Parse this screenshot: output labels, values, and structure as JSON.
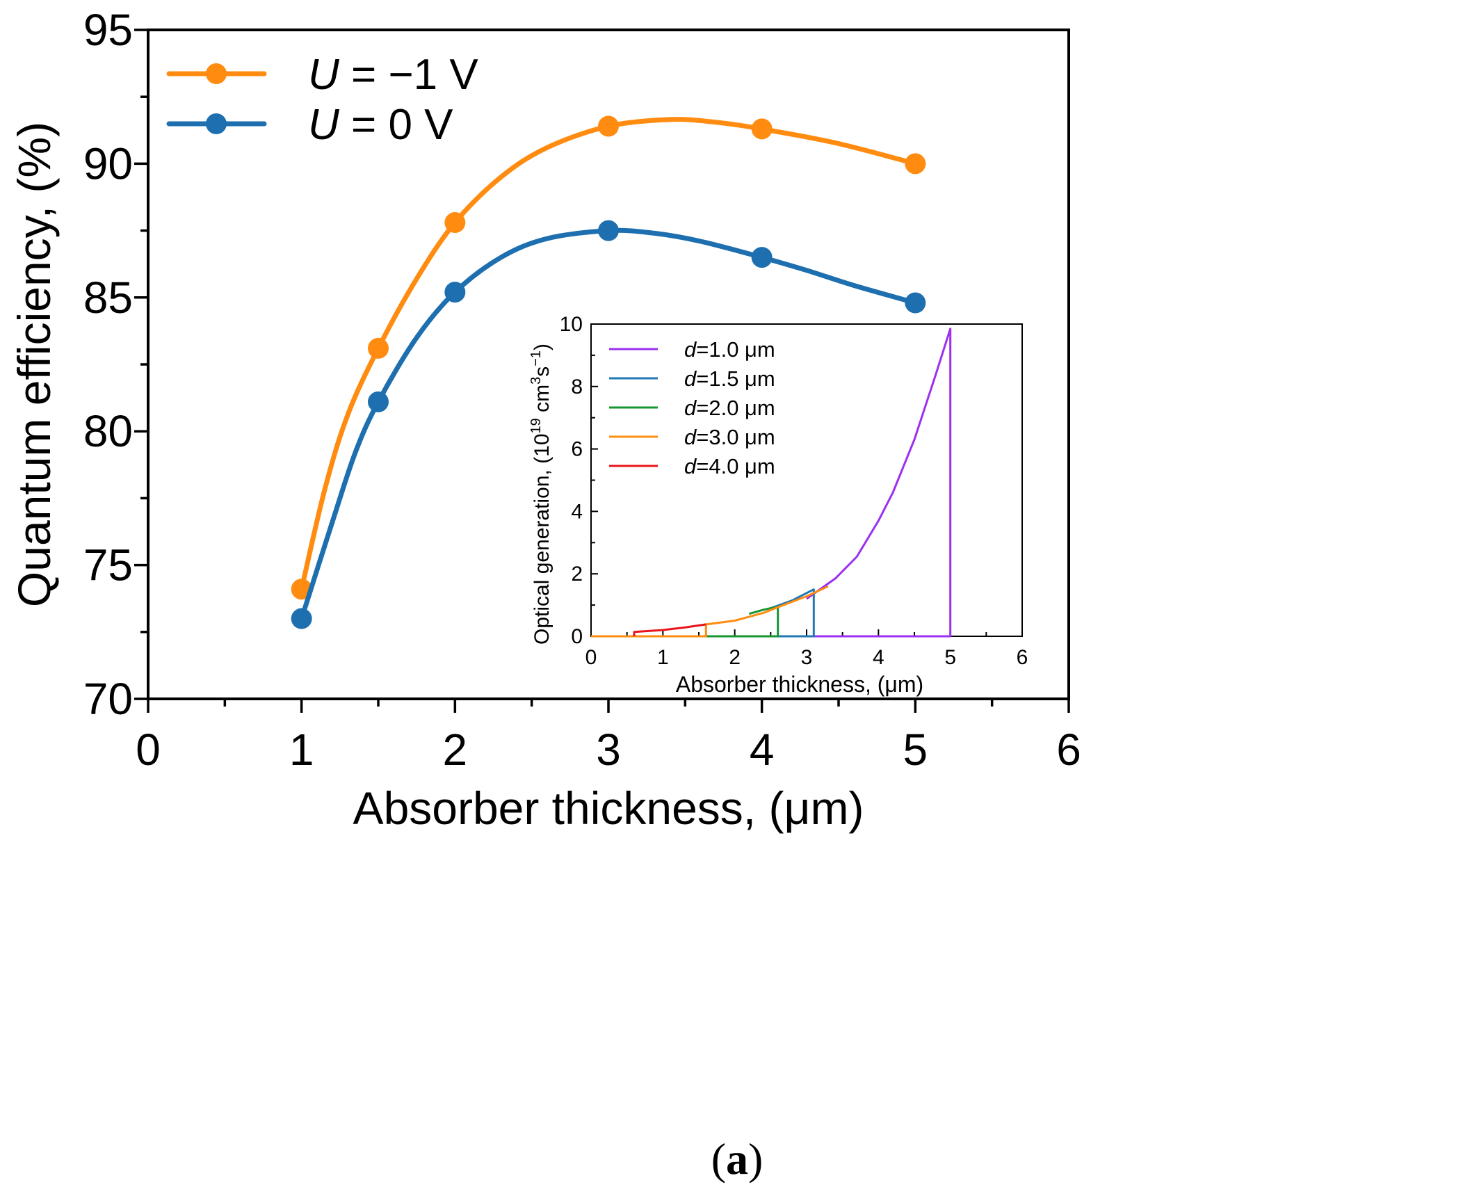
{
  "chart_data": [
    {
      "id": "main",
      "type": "line",
      "xlabel": "Absorber thickness, (μm)",
      "ylabel": "Quantum efficiency, (%)",
      "xlim": [
        0,
        6
      ],
      "ylim": [
        70,
        95
      ],
      "xticks": [
        0,
        1,
        2,
        3,
        4,
        5,
        6
      ],
      "yticks": [
        70,
        75,
        80,
        85,
        90,
        95
      ],
      "legend_position": "top-left",
      "series": [
        {
          "legend_italic": "U",
          "legend_rest": " = −1 V",
          "color": "#FF8C10",
          "points": [
            [
              1,
              74.1
            ],
            [
              1.5,
              83.1
            ],
            [
              2,
              87.8
            ],
            [
              3,
              91.4
            ],
            [
              4,
              91.3
            ],
            [
              5,
              90.0
            ]
          ],
          "curve": [
            [
              1,
              74.1
            ],
            [
              1.15,
              77.8
            ],
            [
              1.3,
              80.6
            ],
            [
              1.5,
              83.1
            ],
            [
              1.75,
              85.7
            ],
            [
              2,
              87.8
            ],
            [
              2.3,
              89.5
            ],
            [
              2.6,
              90.6
            ],
            [
              3,
              91.4
            ],
            [
              3.4,
              91.65
            ],
            [
              3.7,
              91.55
            ],
            [
              4,
              91.3
            ],
            [
              4.5,
              90.75
            ],
            [
              5,
              90.0
            ]
          ]
        },
        {
          "legend_italic": "U",
          "legend_rest": " = 0 V",
          "color": "#1D6FAF",
          "points": [
            [
              1,
              73.0
            ],
            [
              1.5,
              81.1
            ],
            [
              2,
              85.2
            ],
            [
              3,
              87.5
            ],
            [
              4,
              86.5
            ],
            [
              5,
              84.8
            ]
          ],
          "curve": [
            [
              1,
              73.0
            ],
            [
              1.2,
              76.6
            ],
            [
              1.35,
              79.2
            ],
            [
              1.5,
              81.1
            ],
            [
              1.75,
              83.5
            ],
            [
              2,
              85.2
            ],
            [
              2.3,
              86.5
            ],
            [
              2.6,
              87.2
            ],
            [
              3,
              87.5
            ],
            [
              3.3,
              87.4
            ],
            [
              3.6,
              87.1
            ],
            [
              4,
              86.5
            ],
            [
              4.3,
              86.0
            ],
            [
              4.6,
              85.45
            ],
            [
              5,
              84.8
            ]
          ]
        }
      ]
    },
    {
      "id": "inset",
      "type": "line",
      "xlabel": "Absorber thickness, (μm)",
      "ylabel_parts": [
        "Optical generation, (10",
        "19",
        " cm",
        "3",
        "s",
        "−1",
        ")"
      ],
      "xlim": [
        0,
        6
      ],
      "ylim": [
        0,
        10
      ],
      "xticks": [
        0,
        1,
        2,
        3,
        4,
        5,
        6
      ],
      "yticks": [
        0,
        2,
        4,
        6,
        8,
        10
      ],
      "legend_position": "top-left",
      "series": [
        {
          "legend_italic": "d",
          "legend_rest": "=1.0 μm",
          "color": "#9B30F0",
          "start": 1.0,
          "points": [
            [
              0,
              0
            ],
            [
              5,
              0
            ],
            [
              5,
              9.85
            ],
            [
              4.8,
              8.4
            ],
            [
              4.5,
              6.3
            ],
            [
              4.2,
              4.6
            ],
            [
              4.0,
              3.7
            ],
            [
              3.7,
              2.55
            ],
            [
              3.4,
              1.85
            ],
            [
              3.0,
              1.2
            ]
          ]
        },
        {
          "legend_italic": "d",
          "legend_rest": "=1.5 μm",
          "color": "#1F77B4",
          "start": 1.5,
          "points": [
            [
              0,
              0
            ],
            [
              3.1,
              0
            ],
            [
              3.1,
              1.5
            ],
            [
              2.8,
              1.15
            ],
            [
              2.5,
              0.9
            ]
          ]
        },
        {
          "legend_italic": "d",
          "legend_rest": "=2.0 μm",
          "color": "#169630",
          "start": 2.0,
          "points": [
            [
              0,
              0
            ],
            [
              2.6,
              0
            ],
            [
              2.6,
              0.95
            ],
            [
              2.4,
              0.85
            ],
            [
              2.2,
              0.72
            ]
          ]
        },
        {
          "legend_italic": "d",
          "legend_rest": "=3.0 μm",
          "color": "#FF8C10",
          "start": 3.0,
          "points": [
            [
              0,
              0
            ],
            [
              1.6,
              0
            ],
            [
              1.6,
              0.38
            ],
            [
              2.0,
              0.5
            ],
            [
              2.4,
              0.75
            ],
            [
              2.7,
              1.02
            ],
            [
              3.0,
              1.28
            ],
            [
              3.3,
              1.6
            ]
          ]
        },
        {
          "legend_italic": "d",
          "legend_rest": "=4.0 μm",
          "color": "#E8141B",
          "start": 4.0,
          "points": [
            [
              0.6,
              0
            ],
            [
              0.6,
              0.14
            ],
            [
              1.0,
              0.2
            ],
            [
              1.3,
              0.28
            ],
            [
              1.6,
              0.38
            ]
          ]
        }
      ],
      "caption": "(a)"
    }
  ]
}
